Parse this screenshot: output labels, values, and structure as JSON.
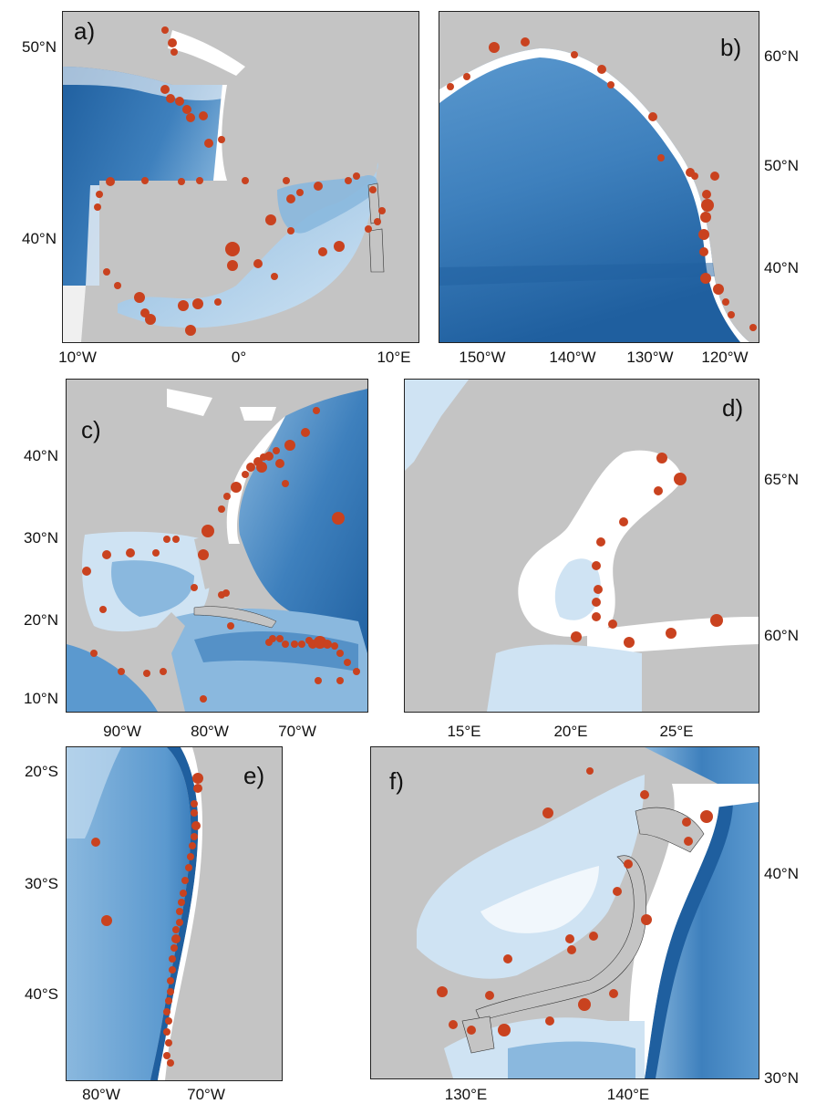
{
  "colors": {
    "land": "#c4c4c4",
    "shelf": "#ffffff",
    "ocean_light": "#cfe3f3",
    "ocean_mid": "#8ab8de",
    "ocean_deep": "#3e80bd",
    "ocean_abyss": "#1f5f9f",
    "station": "#c9421f",
    "coast": "#333333"
  },
  "marker": {
    "shape": "filled circle",
    "meaning": "station"
  },
  "panels": {
    "a": {
      "label": "a)",
      "lat_ticks": [
        "50°N",
        "40°N"
      ],
      "lon_ticks": [
        "10°W",
        "0°",
        "10°E"
      ],
      "lat_range": [
        35.0,
        52.5
      ],
      "lon_range": [
        -10.5,
        10.5
      ]
    },
    "b": {
      "label": "b)",
      "lat_ticks": [
        "60°N",
        "50°N",
        "40°N"
      ],
      "lon_ticks": [
        "150°W",
        "140°W",
        "130°W",
        "120°W"
      ],
      "lat_range": [
        34.0,
        63.0
      ],
      "lon_range": [
        -157.0,
        -117.0
      ]
    },
    "c": {
      "label": "c)",
      "lat_ticks": [
        "40°N",
        "30°N",
        "20°N",
        "10°N"
      ],
      "lon_ticks": [
        "90°W",
        "80°W",
        "70°W"
      ],
      "lat_range": [
        9.0,
        47.0
      ],
      "lon_range": [
        -100.0,
        -60.0
      ]
    },
    "d": {
      "label": "d)",
      "lat_ticks": [
        "65°N",
        "60°N"
      ],
      "lon_ticks": [
        "15°E",
        "20°E",
        "25°E"
      ],
      "lat_range": [
        58.0,
        67.0
      ],
      "lon_range": [
        10.0,
        30.0
      ]
    },
    "e": {
      "label": "e)",
      "lat_ticks": [
        "20°S",
        "30°S",
        "40°S"
      ],
      "lon_ticks": [
        "80°W",
        "70°W"
      ],
      "lat_range": [
        -47.0,
        -17.0
      ],
      "lon_range": [
        -85.0,
        -65.0
      ]
    },
    "f": {
      "label": "f)",
      "lat_ticks": [
        "40°N",
        "30°N"
      ],
      "lon_ticks": [
        "130°E",
        "140°E"
      ],
      "lat_range": [
        30.0,
        48.0
      ],
      "lon_range": [
        125.0,
        150.0
      ]
    }
  }
}
